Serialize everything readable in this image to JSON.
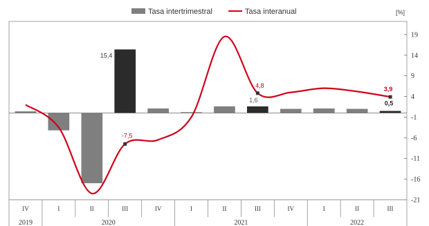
{
  "chart_data": {
    "type": "bar+line",
    "unit": "[%]",
    "categories": [
      "IV",
      "I",
      "II",
      "III",
      "IV",
      "I",
      "II",
      "III",
      "IV",
      "I",
      "II",
      "III"
    ],
    "years": [
      {
        "label": "2019",
        "from": 0,
        "to": 0
      },
      {
        "label": "2020",
        "from": 1,
        "to": 4
      },
      {
        "label": "2021",
        "from": 5,
        "to": 8
      },
      {
        "label": "2022",
        "from": 9,
        "to": 11
      }
    ],
    "ylim": [
      -21,
      21
    ],
    "yticks": [
      19,
      14,
      9,
      4,
      -1,
      -6,
      -11,
      -16,
      -21
    ],
    "grid": false,
    "legend_position": "top",
    "series": [
      {
        "name": "Tasa intertrimestral",
        "type": "bar",
        "color": "#7f7f7f",
        "highlight_color": "#2b2b2b",
        "highlight_indices": [
          3,
          7,
          11
        ],
        "values": [
          0.4,
          -4.2,
          -17.0,
          15.4,
          1.1,
          0.2,
          1.6,
          1.6,
          1.0,
          1.1,
          1.0,
          0.5
        ]
      },
      {
        "name": "Tasa interanual",
        "type": "line",
        "color": "#d0021b",
        "values": [
          2.0,
          -3.5,
          -19.5,
          -7.5,
          -6.5,
          -1.0,
          18.5,
          4.8,
          5.0,
          6.0,
          5.2,
          3.9
        ]
      }
    ],
    "annotations": [
      {
        "series": 0,
        "index": 3,
        "text": "15,4",
        "color": "#333333",
        "bold": false
      },
      {
        "series": 1,
        "index": 3,
        "text": "-7,5",
        "color": "#d0021b",
        "bold": false
      },
      {
        "series": 1,
        "index": 7,
        "text": "4,8",
        "color": "#d0021b",
        "bold": false
      },
      {
        "series": 0,
        "index": 7,
        "text": "1,6",
        "color": "#555555",
        "bold": false
      },
      {
        "series": 1,
        "index": 11,
        "text": "3,9",
        "color": "#d0021b",
        "bold": true
      },
      {
        "series": 0,
        "index": 11,
        "text": "0,5",
        "color": "#222222",
        "bold": true
      }
    ]
  }
}
